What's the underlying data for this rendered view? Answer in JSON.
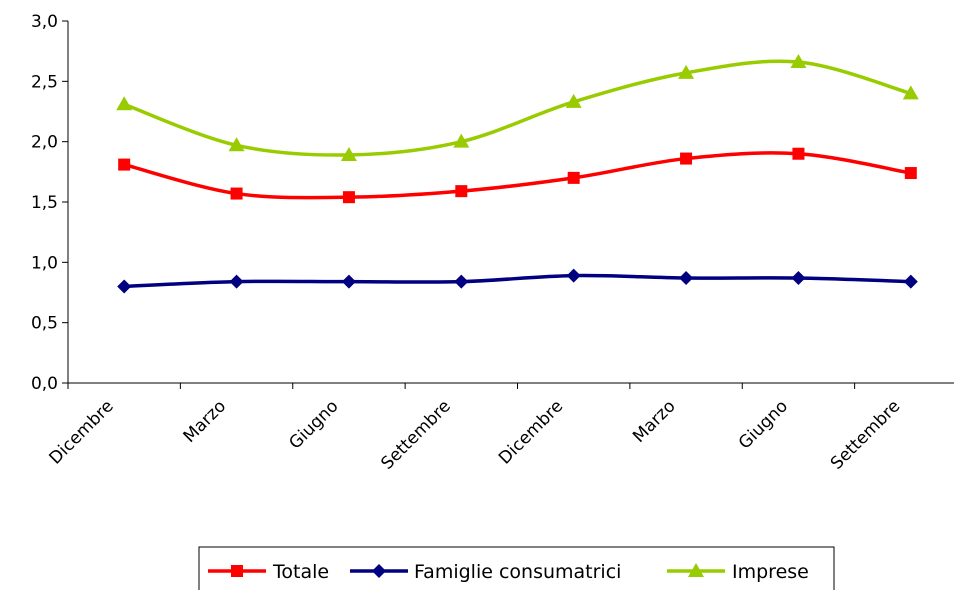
{
  "chart_data": {
    "type": "line",
    "title": "",
    "xlabel": "",
    "ylabel": "",
    "categories": [
      "Dicembre",
      "Marzo",
      "Giugno",
      "Settembre",
      "Dicembre",
      "Marzo",
      "Giugno",
      "Settembre"
    ],
    "y_ticks": [
      "0,0",
      "0,5",
      "1,0",
      "1,5",
      "2,0",
      "2,5",
      "3,0"
    ],
    "ylim": [
      0,
      3
    ],
    "grid": false,
    "legend_position": "bottom",
    "series": [
      {
        "name": "Totale",
        "color": "#ff0000",
        "marker": "square",
        "values": [
          1.81,
          1.57,
          1.54,
          1.59,
          1.7,
          1.86,
          1.9,
          1.74
        ]
      },
      {
        "name": "Famiglie consumatrici",
        "color": "#000080",
        "marker": "diamond",
        "values": [
          0.8,
          0.84,
          0.84,
          0.84,
          0.89,
          0.87,
          0.87,
          0.84
        ]
      },
      {
        "name": "Imprese",
        "color": "#99cc00",
        "marker": "triangle",
        "values": [
          2.31,
          1.97,
          1.89,
          2.0,
          2.33,
          2.57,
          2.66,
          2.4
        ]
      }
    ]
  }
}
